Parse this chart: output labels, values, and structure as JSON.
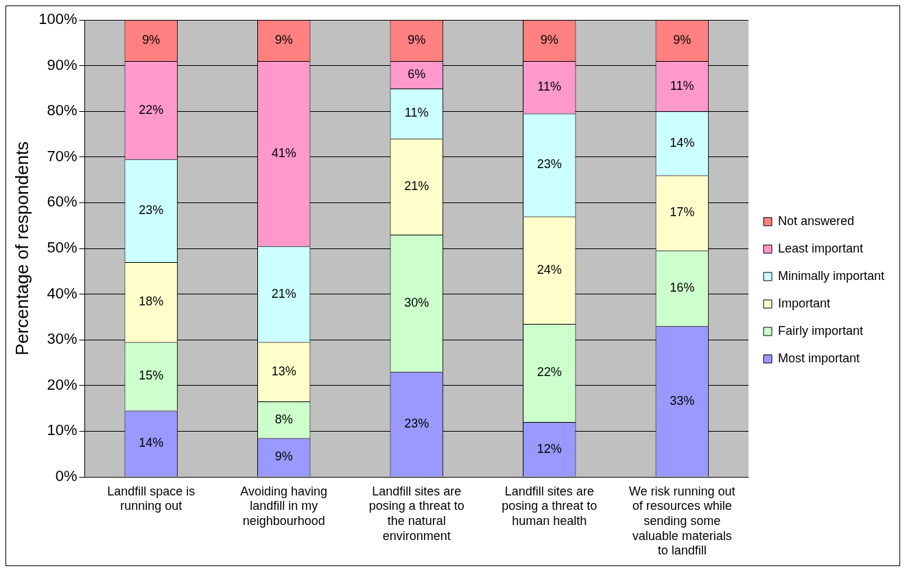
{
  "chart_data": {
    "type": "bar",
    "stacked": true,
    "ylabel": "Percentage of respondents",
    "categories": [
      "Landfill space is running out",
      "Avoiding having landfill in my neighbourhood",
      "Landfill sites are posing a threat to the natural environment",
      "Landfill sites are posing a threat to human health",
      "We risk running out of resources while sending some valuable materials to landfill"
    ],
    "series": [
      {
        "name": "Most important",
        "color": "#9999ff",
        "values": [
          14.5,
          8.5,
          23,
          12,
          33
        ],
        "value_labels": [
          "14%",
          "9%",
          "23%",
          "12%",
          "33%"
        ]
      },
      {
        "name": "Fairly important",
        "color": "#ccffcc",
        "values": [
          15,
          8,
          30,
          21.5,
          16.5
        ],
        "value_labels": [
          "15%",
          "8%",
          "30%",
          "22%",
          "16%"
        ]
      },
      {
        "name": "Important",
        "color": "#ffffcc",
        "values": [
          17.5,
          13,
          21,
          23.5,
          16.5
        ],
        "value_labels": [
          "18%",
          "13%",
          "21%",
          "24%",
          "17%"
        ]
      },
      {
        "name": "Minimally important",
        "color": "#ccffff",
        "values": [
          22.5,
          21,
          11,
          22.5,
          14
        ],
        "value_labels": [
          "23%",
          "21%",
          "11%",
          "23%",
          "14%"
        ]
      },
      {
        "name": "Least important",
        "color": "#ff99cc",
        "values": [
          21.5,
          40.5,
          6,
          11.5,
          11
        ],
        "value_labels": [
          "22%",
          "41%",
          "6%",
          "11%",
          "11%"
        ]
      },
      {
        "name": "Not answered",
        "color": "#ff8080",
        "values": [
          9,
          9,
          9,
          9,
          9
        ],
        "value_labels": [
          "9%",
          "9%",
          "9%",
          "9%",
          "9%"
        ]
      }
    ],
    "ylim": [
      0,
      100
    ],
    "yticks": [
      {
        "value": 0,
        "label": "0%"
      },
      {
        "value": 10,
        "label": "10%"
      },
      {
        "value": 20,
        "label": "20%"
      },
      {
        "value": 30,
        "label": "30%"
      },
      {
        "value": 40,
        "label": "40%"
      },
      {
        "value": 50,
        "label": "50%"
      },
      {
        "value": 60,
        "label": "60%"
      },
      {
        "value": 70,
        "label": "70%"
      },
      {
        "value": 80,
        "label": "80%"
      },
      {
        "value": 90,
        "label": "90%"
      },
      {
        "value": 100,
        "label": "100%"
      }
    ],
    "grid": "y",
    "legend": "right"
  }
}
